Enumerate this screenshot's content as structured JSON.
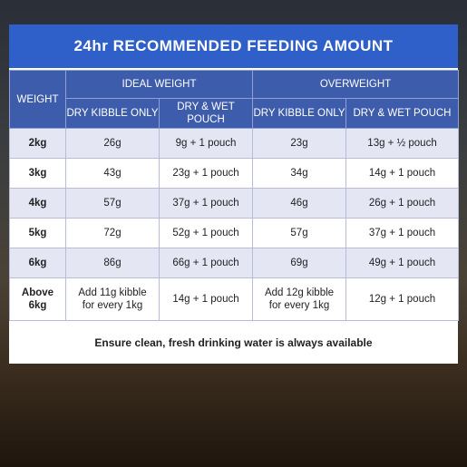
{
  "title": "24hr RECOMMENDED FEEDING AMOUNT",
  "table": {
    "weight_header": "WEIGHT",
    "groups": [
      "IDEAL WEIGHT",
      "OVERWEIGHT"
    ],
    "subheaders": [
      "DRY KIBBLE ONLY",
      "DRY & WET POUCH",
      "DRY KIBBLE ONLY",
      "DRY & WET POUCH"
    ],
    "rows": [
      [
        "2kg",
        "26g",
        "9g + 1 pouch",
        "23g",
        "13g + ½ pouch"
      ],
      [
        "3kg",
        "43g",
        "23g + 1 pouch",
        "34g",
        "14g + 1 pouch"
      ],
      [
        "4kg",
        "57g",
        "37g + 1 pouch",
        "46g",
        "26g + 1 pouch"
      ],
      [
        "5kg",
        "72g",
        "52g + 1 pouch",
        "57g",
        "37g + 1 pouch"
      ],
      [
        "6kg",
        "86g",
        "66g + 1 pouch",
        "69g",
        "49g + 1 pouch"
      ],
      [
        "Above\n6kg",
        "Add 11g kibble\nfor every 1kg",
        "14g + 1 pouch",
        "Add 12g kibble\nfor every 1kg",
        "12g + 1 pouch"
      ]
    ]
  },
  "footer": "Ensure clean, fresh drinking water is always available"
}
